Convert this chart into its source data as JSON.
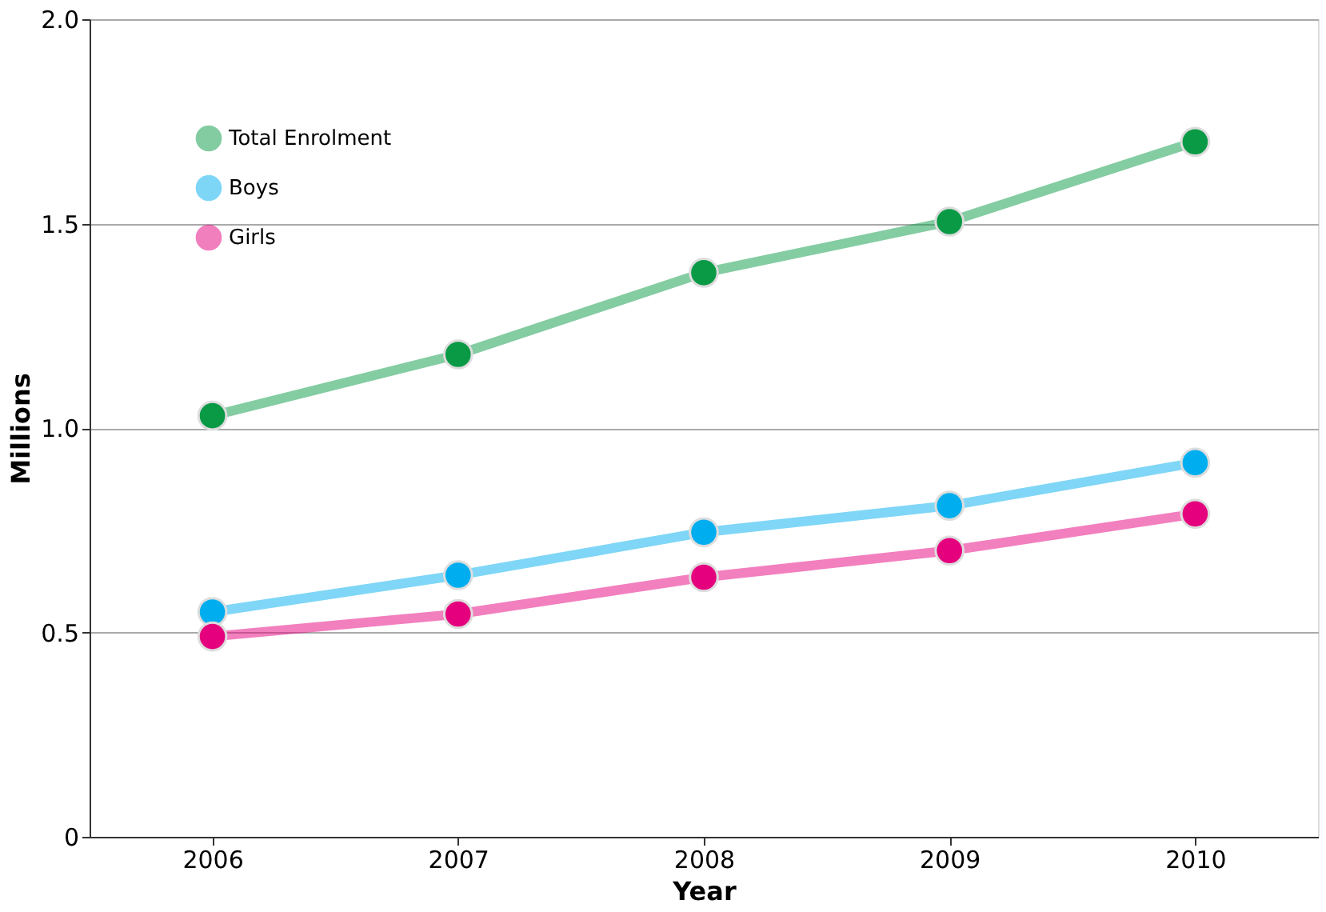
{
  "chart_data": {
    "type": "line",
    "xlabel": "Year",
    "ylabel": "Millions",
    "categories": [
      "2006",
      "2007",
      "2008",
      "2009",
      "2010"
    ],
    "series": [
      {
        "name": "Total Enrolment",
        "color": "#0a9a46",
        "values": [
          1.03,
          1.18,
          1.38,
          1.505,
          1.7
        ]
      },
      {
        "name": "Boys",
        "color": "#00aeef",
        "values": [
          0.55,
          0.64,
          0.745,
          0.81,
          0.915
        ]
      },
      {
        "name": "Girls",
        "color": "#e5007e",
        "values": [
          0.49,
          0.545,
          0.635,
          0.7,
          0.79
        ]
      }
    ],
    "ylim": [
      0,
      2.0
    ],
    "yticks": [
      0,
      {
        "value": 0.5,
        "label": "0.5"
      },
      {
        "value": 1.0,
        "label": "1.0"
      },
      {
        "value": 1.5,
        "label": "1.5"
      },
      {
        "value": 2.0,
        "label": "2.0"
      }
    ],
    "grid": "y",
    "legend": "top left",
    "marker": "circle",
    "line_style": "solid"
  }
}
